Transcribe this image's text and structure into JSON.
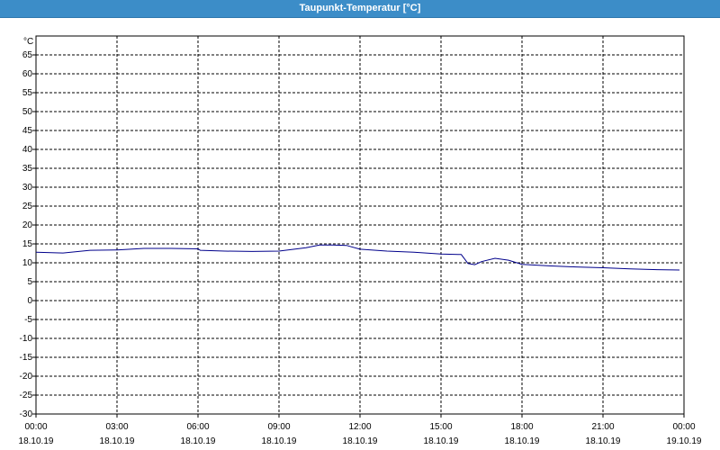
{
  "window": {
    "title": "Taupunkt-Temperatur [°C]"
  },
  "colors": {
    "title_bar": "#3c8dc8",
    "line": "#00008b",
    "grid": "#000000"
  },
  "chart_data": {
    "type": "line",
    "title": "Taupunkt-Temperatur [°C]",
    "ylabel": "°C",
    "xlabel": "",
    "ylim": [
      -30,
      70
    ],
    "y_ticks": [
      65,
      60,
      55,
      50,
      45,
      40,
      35,
      30,
      25,
      20,
      15,
      10,
      5,
      0,
      -5,
      -10,
      -15,
      -20,
      -25,
      -30
    ],
    "xlim": [
      "18.10.19 00:00",
      "19.10.19 00:00"
    ],
    "x_ticks": [
      {
        "time": "00:00",
        "date": "18.10.19"
      },
      {
        "time": "03:00",
        "date": "18.10.19"
      },
      {
        "time": "06:00",
        "date": "18.10.19"
      },
      {
        "time": "09:00",
        "date": "18.10.19"
      },
      {
        "time": "12:00",
        "date": "18.10.19"
      },
      {
        "time": "15:00",
        "date": "18.10.19"
      },
      {
        "time": "18:00",
        "date": "18.10.19"
      },
      {
        "time": "21:00",
        "date": "18.10.19"
      },
      {
        "time": "00:00",
        "date": "19.10.19"
      }
    ],
    "grid": true,
    "legend": "none",
    "series": [
      {
        "x": [
          "00:00",
          "01:00",
          "02:00",
          "03:00",
          "04:00",
          "05:00",
          "06:00",
          "06:05",
          "07:00",
          "08:00",
          "09:00",
          "10:00",
          "10:30",
          "11:00",
          "11:30",
          "12:00",
          "13:00",
          "14:00",
          "15:00",
          "15:45",
          "16:00",
          "16:15",
          "16:30",
          "17:00",
          "17:30",
          "18:00",
          "19:00",
          "20:00",
          "21:00",
          "22:00",
          "23:00",
          "23:50"
        ],
        "y": [
          12.8,
          12.6,
          13.3,
          13.4,
          13.8,
          13.8,
          13.7,
          13.3,
          13.1,
          13.0,
          13.1,
          14.0,
          14.7,
          14.7,
          14.6,
          13.6,
          13.1,
          12.8,
          12.3,
          12.2,
          9.8,
          9.5,
          10.3,
          11.2,
          10.7,
          9.6,
          9.2,
          8.9,
          8.7,
          8.4,
          8.2,
          8.1
        ]
      }
    ]
  }
}
